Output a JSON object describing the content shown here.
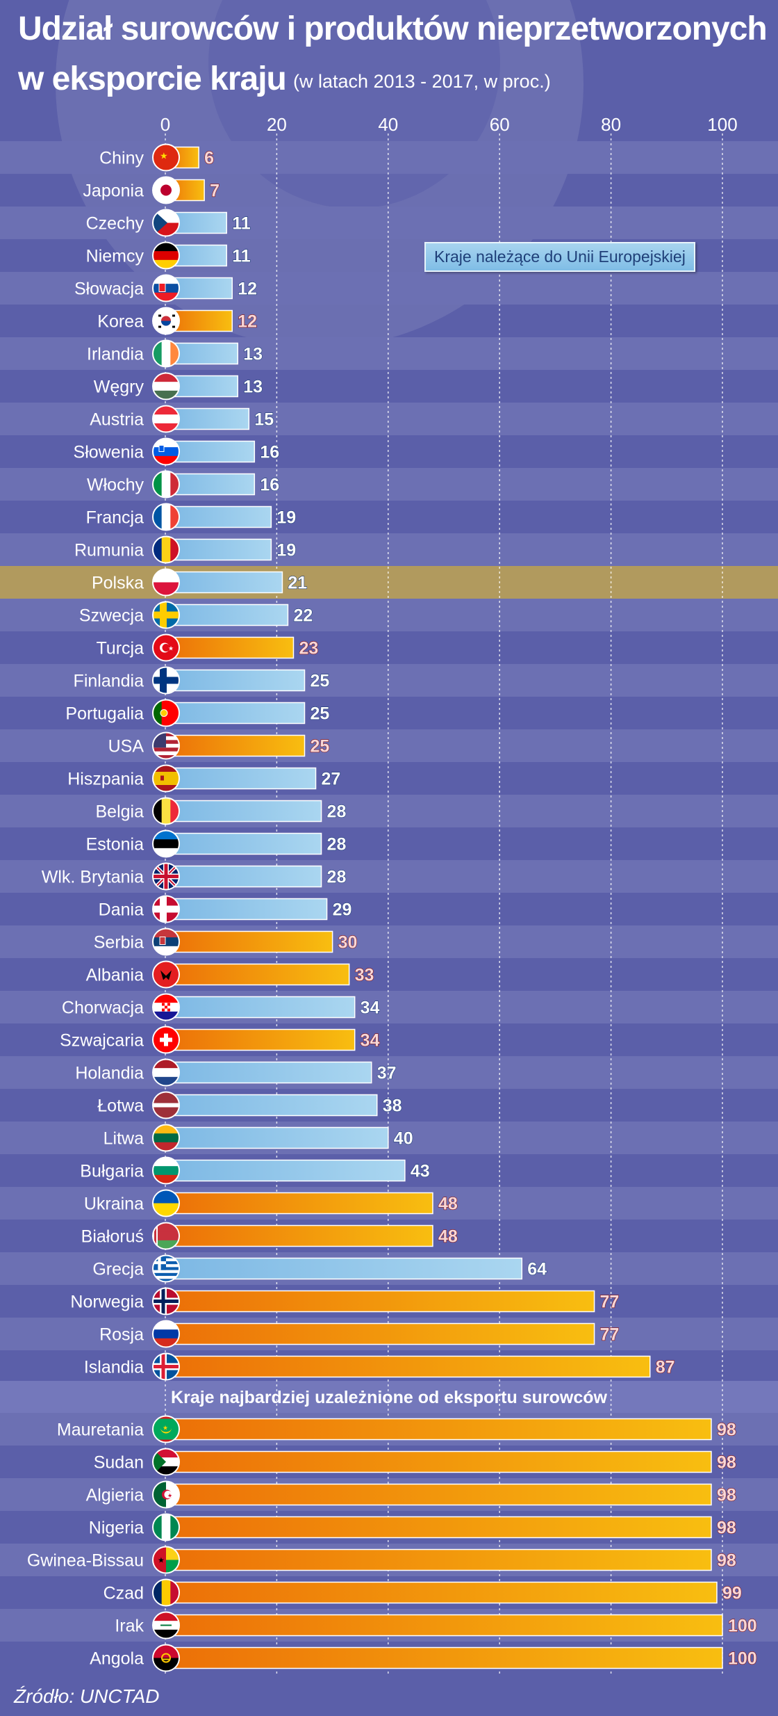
{
  "header": {
    "title_line1": "Udział surowców i produktów nieprzetworzonych",
    "title_line2": "w eksporcie kraju",
    "subtitle": "(w latach 2013 - 2017, w proc.)"
  },
  "legend": {
    "eu_label": "Kraje należące do Unii Europejskiej"
  },
  "section": {
    "label": "Kraje najbardziej uzależnione od eksportu surowców"
  },
  "footer": {
    "source": "Źródło: UNCTAD"
  },
  "colors": {
    "background": "#5b5fa9",
    "band_light": "#6c70b3",
    "eu_bar": "#8cc6ea",
    "non_eu_bar": "#f29b14",
    "highlight_row": "#b19a5e",
    "eu_value_text": "#ffffff",
    "non_eu_value_text": "#f6d8d8"
  },
  "chart_data": {
    "type": "bar",
    "orientation": "horizontal",
    "xlim": [
      0,
      100
    ],
    "xticks": [
      0,
      20,
      40,
      60,
      80,
      100
    ],
    "grid": true,
    "legend_placement": "top-right",
    "highlight": "Polska",
    "groups": [
      {
        "name": "",
        "items": [
          {
            "label": "Chiny",
            "value": 6,
            "eu": false,
            "flag": "china-flag"
          },
          {
            "label": "Japonia",
            "value": 7,
            "eu": false,
            "flag": "japan-flag"
          },
          {
            "label": "Czechy",
            "value": 11,
            "eu": true,
            "flag": "czechia-flag"
          },
          {
            "label": "Niemcy",
            "value": 11,
            "eu": true,
            "flag": "germany-flag"
          },
          {
            "label": "Słowacja",
            "value": 12,
            "eu": true,
            "flag": "slovakia-flag"
          },
          {
            "label": "Korea",
            "value": 12,
            "eu": false,
            "flag": "korea-flag"
          },
          {
            "label": "Irlandia",
            "value": 13,
            "eu": true,
            "flag": "ireland-flag"
          },
          {
            "label": "Węgry",
            "value": 13,
            "eu": true,
            "flag": "hungary-flag"
          },
          {
            "label": "Austria",
            "value": 15,
            "eu": true,
            "flag": "austria-flag"
          },
          {
            "label": "Słowenia",
            "value": 16,
            "eu": true,
            "flag": "slovenia-flag"
          },
          {
            "label": "Włochy",
            "value": 16,
            "eu": true,
            "flag": "italy-flag"
          },
          {
            "label": "Francja",
            "value": 19,
            "eu": true,
            "flag": "france-flag"
          },
          {
            "label": "Rumunia",
            "value": 19,
            "eu": true,
            "flag": "romania-flag"
          },
          {
            "label": "Polska",
            "value": 21,
            "eu": true,
            "flag": "poland-flag"
          },
          {
            "label": "Szwecja",
            "value": 22,
            "eu": true,
            "flag": "sweden-flag"
          },
          {
            "label": "Turcja",
            "value": 23,
            "eu": false,
            "flag": "turkey-flag"
          },
          {
            "label": "Finlandia",
            "value": 25,
            "eu": true,
            "flag": "finland-flag"
          },
          {
            "label": "Portugalia",
            "value": 25,
            "eu": true,
            "flag": "portugal-flag"
          },
          {
            "label": "USA",
            "value": 25,
            "eu": false,
            "flag": "usa-flag"
          },
          {
            "label": "Hiszpania",
            "value": 27,
            "eu": true,
            "flag": "spain-flag"
          },
          {
            "label": "Belgia",
            "value": 28,
            "eu": true,
            "flag": "belgium-flag"
          },
          {
            "label": "Estonia",
            "value": 28,
            "eu": true,
            "flag": "estonia-flag"
          },
          {
            "label": "Wlk. Brytania",
            "value": 28,
            "eu": true,
            "flag": "uk-flag"
          },
          {
            "label": "Dania",
            "value": 29,
            "eu": true,
            "flag": "denmark-flag"
          },
          {
            "label": "Serbia",
            "value": 30,
            "eu": false,
            "flag": "serbia-flag"
          },
          {
            "label": "Albania",
            "value": 33,
            "eu": false,
            "flag": "albania-flag"
          },
          {
            "label": "Chorwacja",
            "value": 34,
            "eu": true,
            "flag": "croatia-flag"
          },
          {
            "label": "Szwajcaria",
            "value": 34,
            "eu": false,
            "flag": "switzerland-flag"
          },
          {
            "label": "Holandia",
            "value": 37,
            "eu": true,
            "flag": "netherlands-flag"
          },
          {
            "label": "Łotwa",
            "value": 38,
            "eu": true,
            "flag": "latvia-flag"
          },
          {
            "label": "Litwa",
            "value": 40,
            "eu": true,
            "flag": "lithuania-flag"
          },
          {
            "label": "Bułgaria",
            "value": 43,
            "eu": true,
            "flag": "bulgaria-flag"
          },
          {
            "label": "Ukraina",
            "value": 48,
            "eu": false,
            "flag": "ukraine-flag"
          },
          {
            "label": "Białoruś",
            "value": 48,
            "eu": false,
            "flag": "belarus-flag"
          },
          {
            "label": "Grecja",
            "value": 64,
            "eu": true,
            "flag": "greece-flag"
          },
          {
            "label": "Norwegia",
            "value": 77,
            "eu": false,
            "flag": "norway-flag"
          },
          {
            "label": "Rosja",
            "value": 77,
            "eu": false,
            "flag": "russia-flag"
          },
          {
            "label": "Islandia",
            "value": 87,
            "eu": false,
            "flag": "iceland-flag"
          }
        ]
      },
      {
        "name": "Kraje najbardziej uzależnione od eksportu surowców",
        "items": [
          {
            "label": "Mauretania",
            "value": 98,
            "eu": false,
            "flag": "mauritania-flag"
          },
          {
            "label": "Sudan",
            "value": 98,
            "eu": false,
            "flag": "sudan-flag"
          },
          {
            "label": "Algieria",
            "value": 98,
            "eu": false,
            "flag": "algeria-flag"
          },
          {
            "label": "Nigeria",
            "value": 98,
            "eu": false,
            "flag": "nigeria-flag"
          },
          {
            "label": "Gwinea-Bissau",
            "value": 98,
            "eu": false,
            "flag": "guinea-bissau-flag"
          },
          {
            "label": "Czad",
            "value": 99,
            "eu": false,
            "flag": "chad-flag"
          },
          {
            "label": "Irak",
            "value": 100,
            "eu": false,
            "flag": "iraq-flag"
          },
          {
            "label": "Angola",
            "value": 100,
            "eu": false,
            "flag": "angola-flag"
          }
        ]
      }
    ]
  }
}
